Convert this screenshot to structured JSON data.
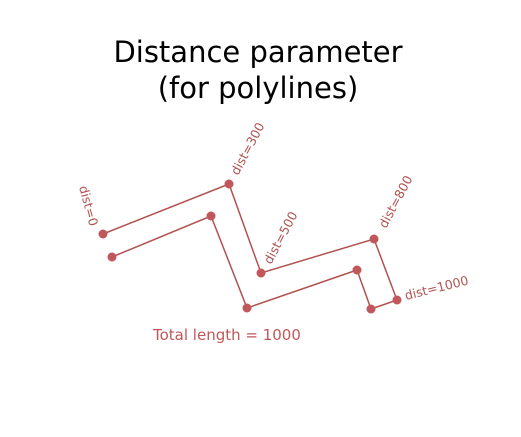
{
  "title": {
    "line1": "Distance parameter",
    "line2": "(for polylines)"
  },
  "polyline": {
    "color": "#c0575a",
    "stroke_color": "#b0524f"
  },
  "distance_labels": [
    {
      "text": "dist=0"
    },
    {
      "text": "dist=300"
    },
    {
      "text": "dist=500"
    },
    {
      "text": "dist=800"
    },
    {
      "text": "dist=1000"
    }
  ],
  "total_label": "Total length = 1000"
}
